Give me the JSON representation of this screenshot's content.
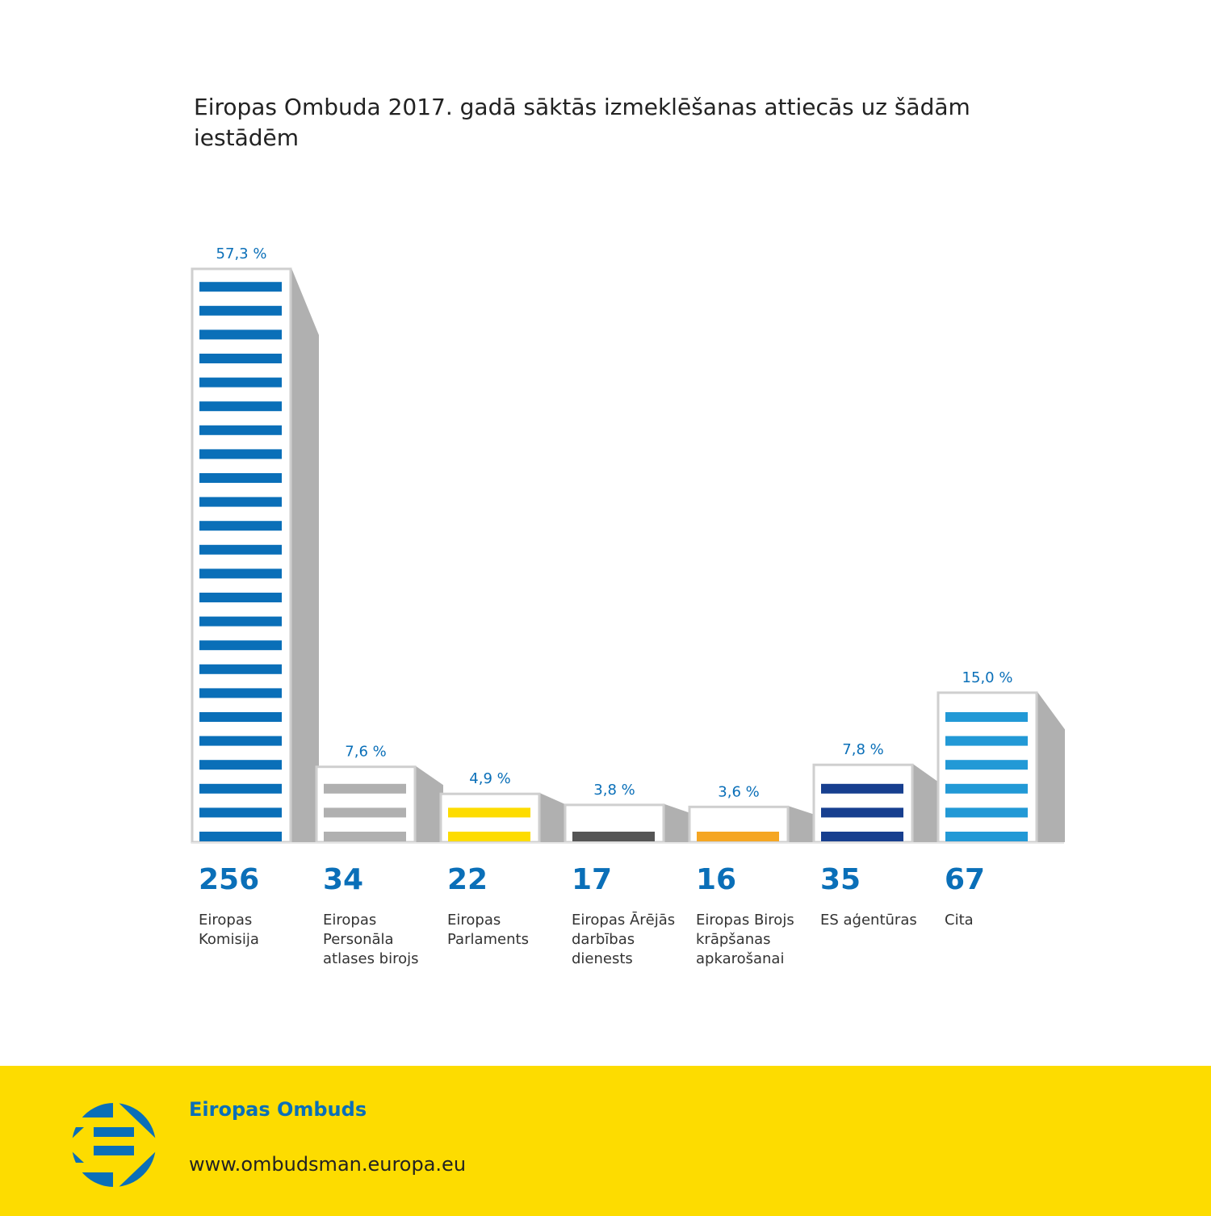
{
  "chart_data": {
    "type": "bar",
    "title": "Eiropas Ombuda 2017. gadā sāktās izmeklēšanas attiecās uz šādām iestādēm",
    "categories": [
      "Eiropas\nKomisija",
      "Eiropas\nPersonāla\natlases birojs",
      "Eiropas\nParlaments",
      "Eiropas Ārējās\ndarbības\ndienests",
      "Eiropas Birojs\nkrāpšanas\napkarošanai",
      "ES aģentūras",
      "Cita"
    ],
    "values": [
      256,
      34,
      22,
      17,
      16,
      35,
      67
    ],
    "percent_labels": [
      "57,3 %",
      "7,6 %",
      "4,9 %",
      "3,8 %",
      "3,6 %",
      "7,8 %",
      "15,0 %"
    ],
    "percents": [
      57.3,
      7.6,
      4.9,
      3.8,
      3.6,
      7.8,
      15.0
    ],
    "colors": [
      "#0a6fb8",
      "#b0b0b0",
      "#fddc00",
      "#555555",
      "#f5a623",
      "#173f8f",
      "#2299d6"
    ],
    "xlabel": "",
    "ylabel": ""
  },
  "footer": {
    "org": "Eiropas Ombuds",
    "url": "www.ombudsman.europa.eu"
  }
}
